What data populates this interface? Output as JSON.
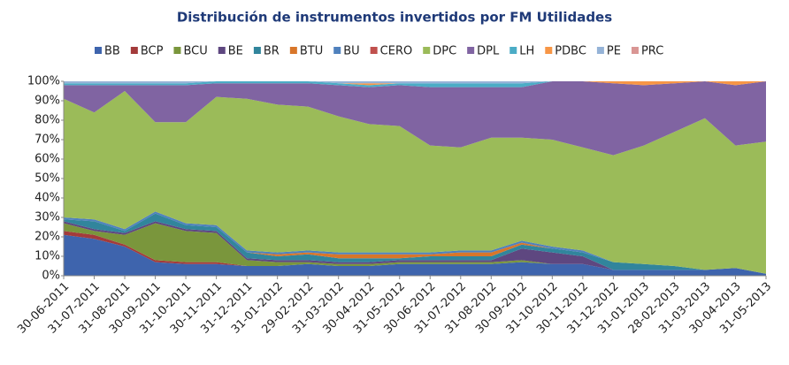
{
  "chart_data": {
    "type": "stacked_area_100",
    "title": "Distribución de instrumentos invertidos por FM Utilidades",
    "categories": [
      "30-06-2011",
      "31-07-2011",
      "31-08-2011",
      "30-09-2011",
      "31-10-2011",
      "30-11-2011",
      "31-12-2011",
      "31-01-2012",
      "29-02-2012",
      "31-03-2012",
      "30-04-2012",
      "31-05-2012",
      "30-06-2012",
      "31-07-2012",
      "31-08-2012",
      "30-09-2012",
      "31-10-2012",
      "30-11-2012",
      "31-12-2012",
      "31-01-2013",
      "28-02-2013",
      "31-03-2013",
      "30-04-2013",
      "31-05-2013"
    ],
    "series": [
      {
        "name": "BB",
        "color": "#3e64ad",
        "values": [
          21,
          19,
          15,
          7,
          6,
          6,
          5,
          5,
          6,
          5,
          5,
          6,
          6,
          6,
          6,
          7,
          6,
          6,
          3,
          3,
          3,
          3,
          4,
          1
        ]
      },
      {
        "name": "BCP",
        "color": "#a33b3b",
        "values": [
          2,
          2,
          1,
          1,
          1,
          1,
          0,
          0,
          0,
          0,
          0,
          0,
          0,
          0,
          0,
          0,
          0,
          0,
          0,
          0,
          0,
          0,
          0,
          0
        ]
      },
      {
        "name": "BCU",
        "color": "#7a963c",
        "values": [
          4,
          2,
          5,
          19,
          16,
          15,
          3,
          2,
          1,
          1,
          1,
          1,
          1,
          1,
          1,
          1,
          0,
          0,
          0,
          0,
          0,
          0,
          0,
          0
        ]
      },
      {
        "name": "BE",
        "color": "#5e4780",
        "values": [
          1,
          1,
          1,
          1,
          1,
          1,
          1,
          1,
          1,
          1,
          1,
          1,
          1,
          1,
          1,
          6,
          6,
          4,
          0,
          0,
          0,
          0,
          0,
          0
        ]
      },
      {
        "name": "BR",
        "color": "#31859c",
        "values": [
          1,
          4,
          1,
          4,
          2,
          2,
          3,
          2,
          3,
          2,
          2,
          1,
          2,
          2,
          2,
          2,
          2,
          2,
          4,
          3,
          2,
          0,
          0,
          0
        ]
      },
      {
        "name": "BTU",
        "color": "#d8762a",
        "values": [
          0,
          0,
          0,
          0,
          0,
          0,
          0,
          1,
          1,
          2,
          2,
          2,
          1,
          2,
          2,
          1,
          0,
          0,
          0,
          0,
          0,
          0,
          0,
          0
        ]
      },
      {
        "name": "BU",
        "color": "#4f81bd",
        "values": [
          1,
          1,
          1,
          1,
          1,
          1,
          1,
          1,
          1,
          1,
          1,
          1,
          1,
          1,
          1,
          1,
          1,
          1,
          0,
          0,
          0,
          0,
          0,
          0
        ]
      },
      {
        "name": "CERO",
        "color": "#c0504d",
        "values": [
          0,
          0,
          0,
          0,
          0,
          0,
          0,
          0,
          0,
          0,
          0,
          0,
          0,
          0,
          0,
          0,
          0,
          0,
          0,
          0,
          0,
          0,
          0,
          0
        ]
      },
      {
        "name": "DPC",
        "color": "#9bbb59",
        "values": [
          61,
          55,
          71,
          46,
          52,
          66,
          78,
          76,
          74,
          70,
          66,
          65,
          55,
          53,
          58,
          53,
          55,
          53,
          55,
          61,
          69,
          78,
          63,
          68
        ]
      },
      {
        "name": "DPL",
        "color": "#8064a2",
        "values": [
          7,
          14,
          3,
          19,
          19,
          7,
          8,
          11,
          12,
          16,
          19,
          21,
          30,
          31,
          26,
          26,
          30,
          34,
          37,
          31,
          25,
          19,
          31,
          31
        ]
      },
      {
        "name": "LH",
        "color": "#4bacc6",
        "values": [
          1,
          1,
          1,
          1,
          1,
          1,
          1,
          1,
          1,
          1,
          1,
          1,
          2,
          2,
          2,
          2,
          0,
          0,
          0,
          0,
          0,
          0,
          0,
          0
        ]
      },
      {
        "name": "PDBC",
        "color": "#f79646",
        "values": [
          0,
          0,
          0,
          0,
          0,
          0,
          0,
          0,
          0,
          0,
          1,
          0,
          0,
          0,
          0,
          0,
          0,
          0,
          1,
          2,
          1,
          0,
          2,
          0
        ]
      },
      {
        "name": "PE",
        "color": "#95b3d7",
        "values": [
          1,
          1,
          1,
          1,
          1,
          0,
          0,
          0,
          0,
          1,
          1,
          1,
          1,
          1,
          1,
          1,
          0,
          0,
          0,
          0,
          0,
          0,
          0,
          0
        ]
      },
      {
        "name": "PRC",
        "color": "#d99694",
        "values": [
          0,
          0,
          0,
          0,
          0,
          0,
          0,
          0,
          0,
          0,
          0,
          0,
          0,
          0,
          0,
          0,
          0,
          0,
          0,
          0,
          0,
          0,
          0,
          0
        ]
      }
    ],
    "ylim": [
      0,
      100
    ],
    "yticks": [
      {
        "value": 0,
        "label": "0%"
      },
      {
        "value": 10,
        "label": "10%"
      },
      {
        "value": 20,
        "label": "20%"
      },
      {
        "value": 30,
        "label": "30%"
      },
      {
        "value": 40,
        "label": "40%"
      },
      {
        "value": 50,
        "label": "50%"
      },
      {
        "value": 60,
        "label": "60%"
      },
      {
        "value": 70,
        "label": "70%"
      },
      {
        "value": 80,
        "label": "80%"
      },
      {
        "value": 90,
        "label": "90%"
      },
      {
        "value": 100,
        "label": "100%"
      }
    ],
    "legend": "top"
  }
}
